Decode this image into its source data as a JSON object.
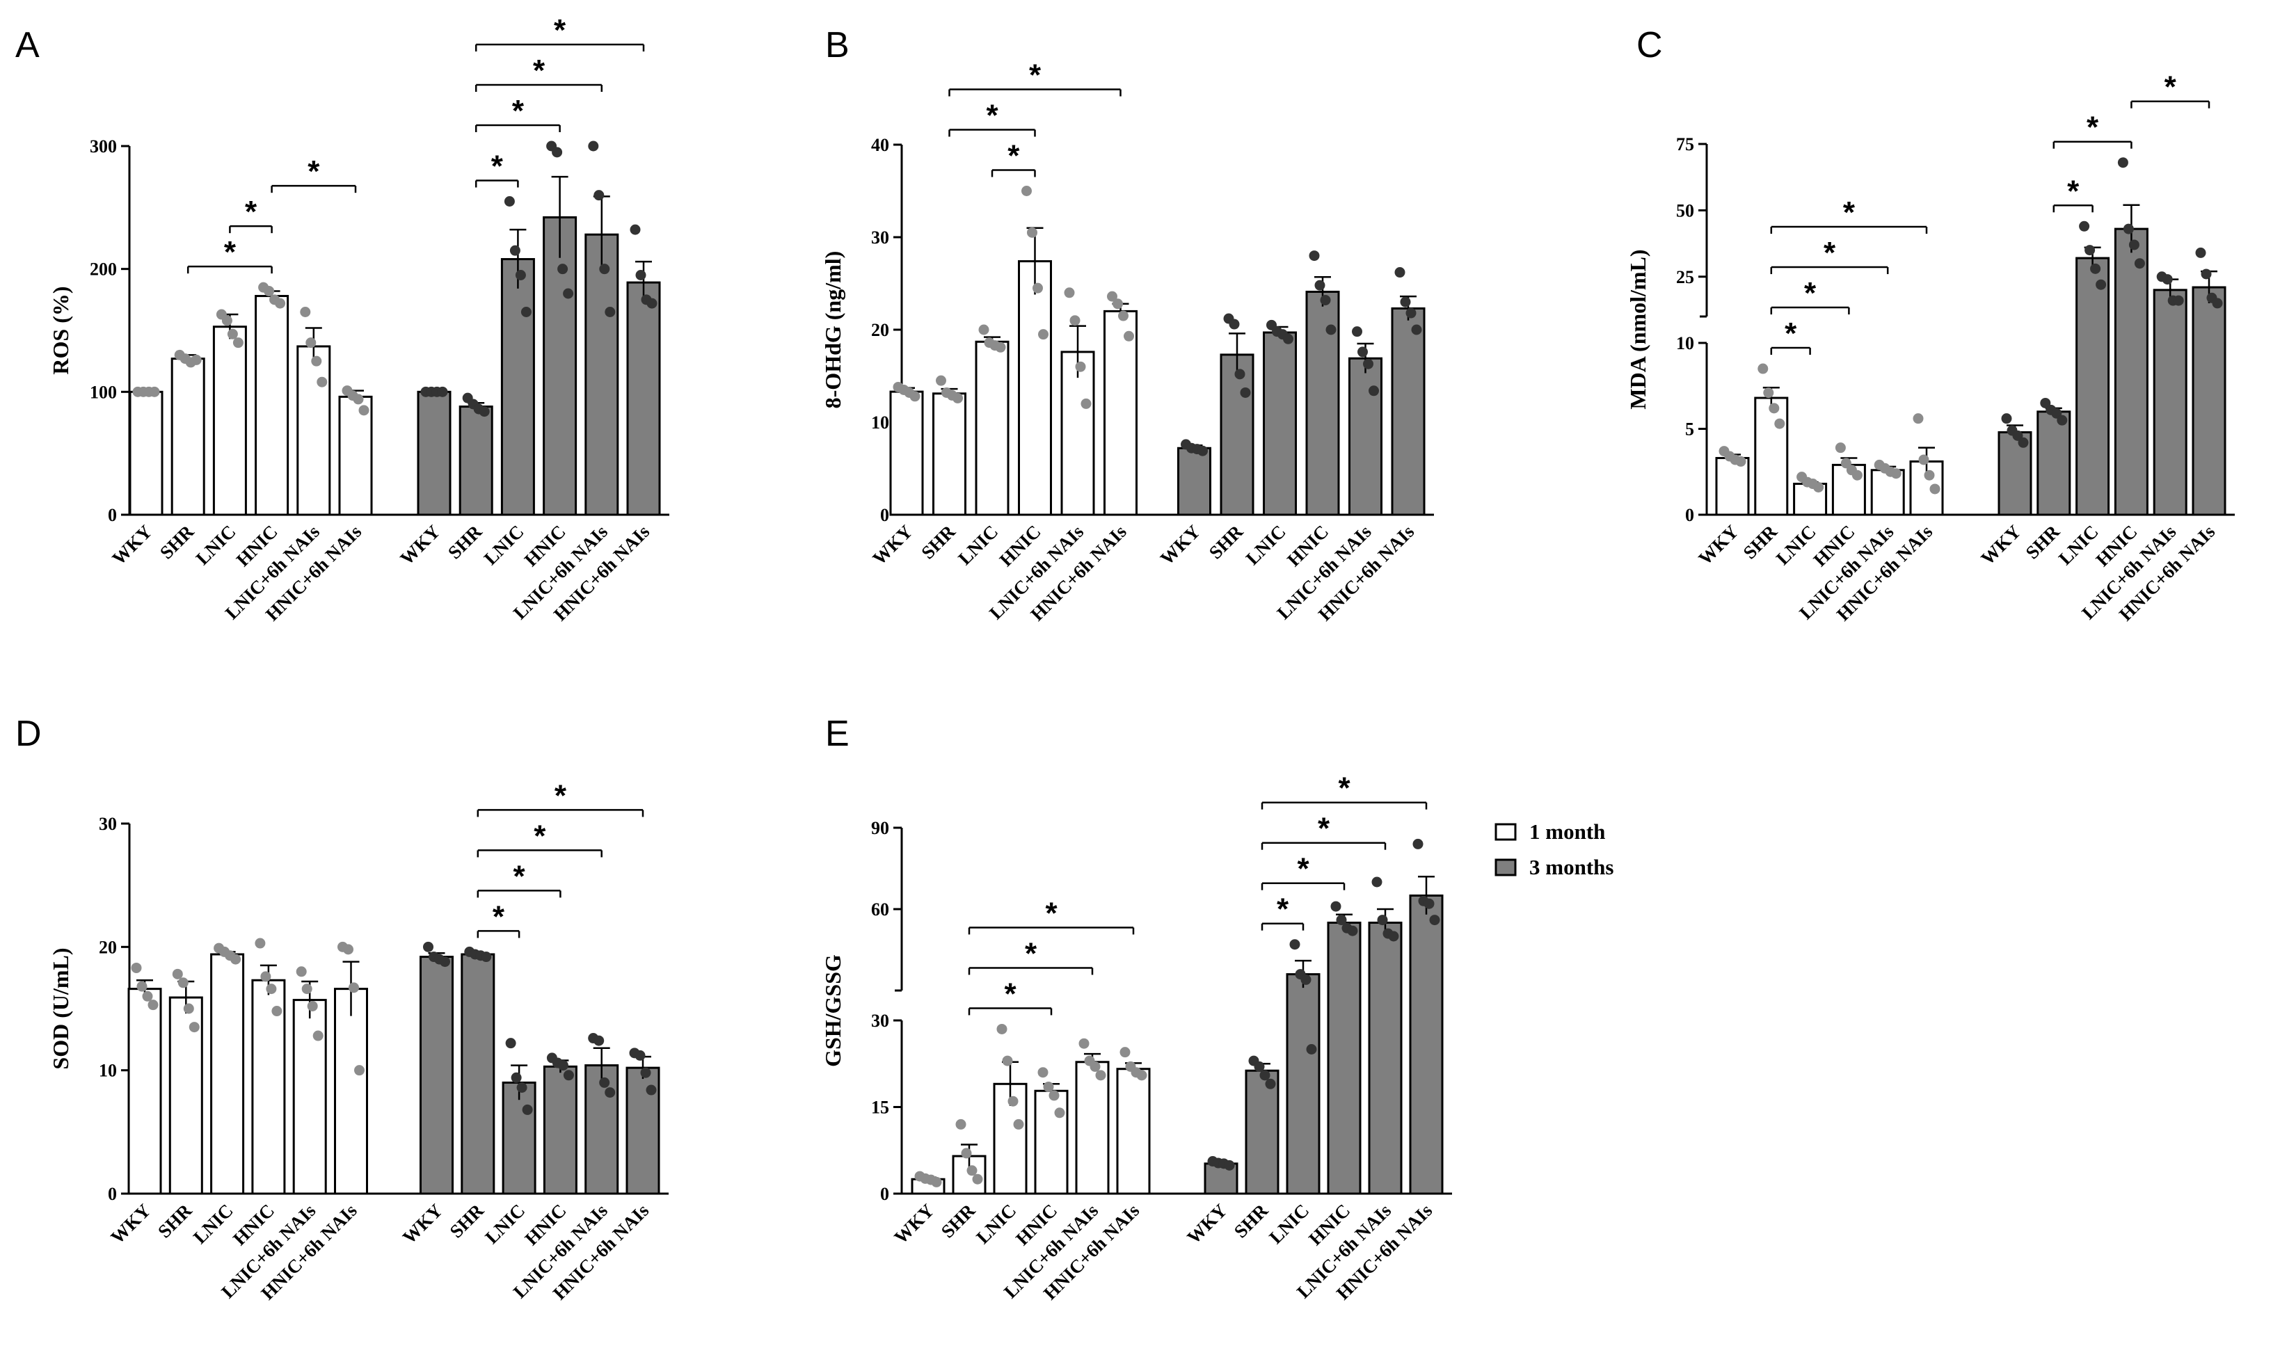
{
  "colors": {
    "month1_fill": "#ffffff",
    "month3_fill": "#7f7f7f",
    "month1_dots": "#8c8c8c",
    "month3_dots": "#333333",
    "axis": "#000000"
  },
  "legend": {
    "month1": "1 month",
    "month3": "3 months"
  },
  "chart_data": [
    {
      "panel": "A",
      "type": "bar",
      "ylabel": "ROS (%)",
      "ylim": [
        0,
        300
      ],
      "yticks": [
        0,
        100,
        200,
        300
      ],
      "categories": [
        "WKY",
        "SHR",
        "LNIC",
        "HNIC",
        "LNIC+6h NAIs",
        "HNIC+6h NAIs"
      ],
      "series": [
        {
          "name": "1 month",
          "values": [
            100,
            127,
            153,
            178,
            137,
            96
          ],
          "sem": [
            0,
            3,
            10,
            4,
            15,
            5
          ],
          "points": [
            [
              100,
              100,
              100,
              100
            ],
            [
              130,
              127,
              124,
              126
            ],
            [
              163,
              158,
              147,
              140
            ],
            [
              185,
              182,
              175,
              172
            ],
            [
              165,
              140,
              125,
              108
            ],
            [
              101,
              97,
              94,
              85
            ]
          ]
        },
        {
          "name": "3 months",
          "values": [
            100,
            88,
            208,
            242,
            228,
            189
          ],
          "sem": [
            0,
            3,
            24,
            33,
            31,
            17
          ],
          "points": [
            [
              100,
              100,
              100,
              100
            ],
            [
              95,
              90,
              86,
              84
            ],
            [
              255,
              215,
              195,
              165
            ],
            [
              300,
              295,
              200,
              180
            ],
            [
              300,
              260,
              200,
              165
            ],
            [
              232,
              195,
              175,
              172
            ]
          ]
        }
      ],
      "comparisons": [
        {
          "series": 0,
          "from": 1,
          "to": 3,
          "label": "*"
        },
        {
          "series": 0,
          "from": 2,
          "to": 3,
          "label": "*"
        },
        {
          "series": 0,
          "from": 3,
          "to": 5,
          "label": "*"
        },
        {
          "series": 1,
          "from": 1,
          "to": 2,
          "label": "*"
        },
        {
          "series": 1,
          "from": 1,
          "to": 3,
          "label": "*"
        },
        {
          "series": 1,
          "from": 1,
          "to": 4,
          "label": "*"
        },
        {
          "series": 1,
          "from": 1,
          "to": 5,
          "label": "*"
        }
      ]
    },
    {
      "panel": "B",
      "type": "bar",
      "ylabel": "8-OHdG (ng/ml)",
      "ylim": [
        0,
        40
      ],
      "yticks": [
        0,
        10,
        20,
        30,
        40
      ],
      "categories": [
        "WKY",
        "SHR",
        "LNIC",
        "HNIC",
        "LNIC+6h NAIs",
        "HNIC+6h NAIs"
      ],
      "series": [
        {
          "name": "1 month",
          "values": [
            13.3,
            13.1,
            18.7,
            27.4,
            17.6,
            22.0
          ],
          "sem": [
            0.4,
            0.5,
            0.5,
            3.6,
            2.8,
            0.8
          ],
          "points": [
            [
              13.8,
              13.5,
              13.2,
              12.8
            ],
            [
              14.5,
              13.2,
              12.9,
              12.6
            ],
            [
              20.0,
              18.6,
              18.3,
              18.1
            ],
            [
              35.0,
              30.5,
              24.5,
              19.5
            ],
            [
              24.0,
              21.0,
              16.0,
              12.0
            ],
            [
              23.6,
              22.8,
              21.5,
              19.3
            ]
          ]
        },
        {
          "name": "3 months",
          "values": [
            7.2,
            17.3,
            19.7,
            24.1,
            16.9,
            22.3
          ],
          "sem": [
            0.3,
            2.3,
            0.6,
            1.6,
            1.6,
            1.3
          ],
          "points": [
            [
              7.6,
              7.2,
              7.1,
              6.9
            ],
            [
              21.2,
              20.6,
              15.2,
              13.2
            ],
            [
              20.5,
              19.8,
              19.5,
              19.0
            ],
            [
              28.0,
              24.8,
              23.2,
              20.0
            ],
            [
              19.8,
              17.6,
              16.3,
              13.4
            ],
            [
              26.2,
              23.0,
              21.8,
              20.0
            ]
          ]
        }
      ],
      "comparisons": [
        {
          "series": 0,
          "from": 2,
          "to": 3,
          "label": "*"
        },
        {
          "series": 0,
          "from": 1,
          "to": 3,
          "label": "*"
        },
        {
          "series": 0,
          "from": 1,
          "to": 5,
          "label": "*"
        }
      ]
    },
    {
      "panel": "C",
      "type": "bar",
      "ylabel": "MDA (nmol/mL)",
      "axis_break": {
        "lower": [
          0,
          10
        ],
        "upper": [
          10,
          75
        ]
      },
      "yticks": [
        0,
        5,
        10,
        25,
        50,
        75
      ],
      "categories": [
        "WKY",
        "SHR",
        "LNIC",
        "HNIC",
        "LNIC+6h NAIs",
        "HNIC+6h NAIs"
      ],
      "series": [
        {
          "name": "1 month",
          "values": [
            3.3,
            6.8,
            1.8,
            2.9,
            2.6,
            3.1
          ],
          "sem": [
            0.2,
            0.6,
            0.1,
            0.4,
            0.2,
            0.8
          ],
          "points": [
            [
              3.7,
              3.4,
              3.2,
              3.1
            ],
            [
              8.5,
              7.1,
              6.2,
              5.3
            ],
            [
              2.2,
              1.9,
              1.8,
              1.6
            ],
            [
              3.9,
              3.0,
              2.6,
              2.3
            ],
            [
              2.9,
              2.7,
              2.5,
              2.4
            ],
            [
              5.6,
              3.2,
              2.3,
              1.5
            ]
          ]
        },
        {
          "name": "3 months",
          "values": [
            4.8,
            6.0,
            32,
            43,
            20,
            21
          ],
          "sem": [
            0.4,
            0.2,
            4,
            9,
            4,
            6
          ],
          "points": [
            [
              5.6,
              4.9,
              4.6,
              4.2
            ],
            [
              6.5,
              6.1,
              5.9,
              5.5
            ],
            [
              44,
              35,
              28,
              22
            ],
            [
              68,
              43,
              37,
              30
            ],
            [
              25,
              24,
              16,
              16
            ],
            [
              34,
              26,
              17,
              15
            ]
          ]
        }
      ],
      "comparisons": [
        {
          "series": 0,
          "from": 1,
          "to": 2,
          "label": "*"
        },
        {
          "series": 0,
          "from": 1,
          "to": 3,
          "label": "*"
        },
        {
          "series": 0,
          "from": 1,
          "to": 4,
          "label": "*"
        },
        {
          "series": 0,
          "from": 1,
          "to": 5,
          "label": "*"
        },
        {
          "series": 1,
          "from": 1,
          "to": 2,
          "label": "*"
        },
        {
          "series": 1,
          "from": 1,
          "to": 3,
          "label": "*"
        },
        {
          "series": 1,
          "from": 3,
          "to": 5,
          "label": "*"
        }
      ]
    },
    {
      "panel": "D",
      "type": "bar",
      "ylabel": "SOD (U/mL)",
      "ylim": [
        0,
        30
      ],
      "yticks": [
        0,
        10,
        20,
        30
      ],
      "categories": [
        "WKY",
        "SHR",
        "LNIC",
        "HNIC",
        "LNIC+6h NAIs",
        "HNIC+6h NAIs"
      ],
      "series": [
        {
          "name": "1 month",
          "values": [
            16.6,
            15.9,
            19.4,
            17.3,
            15.7,
            16.6
          ],
          "sem": [
            0.7,
            1.3,
            0.2,
            1.2,
            1.5,
            2.2
          ],
          "points": [
            [
              18.3,
              16.8,
              16.0,
              15.3
            ],
            [
              17.8,
              17.1,
              15.0,
              13.5
            ],
            [
              19.9,
              19.6,
              19.3,
              19.0
            ],
            [
              20.3,
              17.6,
              16.6,
              14.8
            ],
            [
              18.0,
              16.6,
              15.2,
              12.8
            ],
            [
              20.0,
              19.8,
              16.7,
              10.0
            ]
          ]
        },
        {
          "name": "3 months",
          "values": [
            19.2,
            19.4,
            9.0,
            10.3,
            10.4,
            10.2
          ],
          "sem": [
            0.3,
            0.1,
            1.4,
            0.5,
            1.4,
            0.9
          ],
          "points": [
            [
              20.0,
              19.2,
              19.0,
              18.8
            ],
            [
              19.6,
              19.4,
              19.3,
              19.2
            ],
            [
              12.2,
              9.4,
              8.6,
              6.8
            ],
            [
              11.0,
              10.6,
              10.4,
              9.6
            ],
            [
              12.6,
              12.4,
              9.0,
              8.2
            ],
            [
              11.4,
              11.2,
              9.8,
              8.4
            ]
          ]
        }
      ],
      "comparisons": [
        {
          "series": 1,
          "from": 1,
          "to": 2,
          "label": "*"
        },
        {
          "series": 1,
          "from": 1,
          "to": 3,
          "label": "*"
        },
        {
          "series": 1,
          "from": 1,
          "to": 4,
          "label": "*"
        },
        {
          "series": 1,
          "from": 1,
          "to": 5,
          "label": "*"
        }
      ]
    },
    {
      "panel": "E",
      "type": "bar",
      "ylabel": "GSH/GSSG",
      "axis_break": {
        "lower": [
          0,
          30
        ],
        "upper": [
          30,
          90
        ]
      },
      "yticks": [
        0,
        15,
        30,
        60,
        90
      ],
      "categories": [
        "WKY",
        "SHR",
        "LNIC",
        "HNIC",
        "LNIC+6h NAIs",
        "HNIC+6h NAIs"
      ],
      "series": [
        {
          "name": "1 month",
          "values": [
            2.5,
            6.5,
            19.0,
            17.8,
            22.8,
            21.6
          ],
          "sem": [
            0.3,
            2.0,
            3.8,
            1.2,
            1.4,
            1.0
          ],
          "points": [
            [
              3.0,
              2.6,
              2.4,
              2.0
            ],
            [
              12.0,
              7.0,
              4.0,
              2.5
            ],
            [
              28.5,
              23.0,
              16.0,
              12.0
            ],
            [
              21.0,
              18.5,
              17.0,
              14.0
            ],
            [
              26.0,
              23.0,
              22.0,
              20.5
            ],
            [
              24.5,
              22.0,
              21.0,
              20.5
            ]
          ]
        },
        {
          "name": "3 months",
          "values": [
            5.2,
            21.3,
            36,
            55,
            55,
            65
          ],
          "sem": [
            0.2,
            1.2,
            5,
            3,
            5,
            7
          ],
          "points": [
            [
              5.6,
              5.3,
              5.2,
              4.9
            ],
            [
              23.0,
              22.0,
              20.5,
              19.0
            ],
            [
              47,
              36,
              34,
              25
            ],
            [
              61,
              56,
              53,
              52
            ],
            [
              70,
              56,
              51,
              50
            ],
            [
              84,
              63,
              62,
              56
            ]
          ]
        }
      ],
      "comparisons": [
        {
          "series": 0,
          "from": 1,
          "to": 3,
          "label": "*"
        },
        {
          "series": 0,
          "from": 1,
          "to": 4,
          "label": "*"
        },
        {
          "series": 0,
          "from": 1,
          "to": 5,
          "label": "*"
        },
        {
          "series": 1,
          "from": 1,
          "to": 2,
          "label": "*"
        },
        {
          "series": 1,
          "from": 1,
          "to": 3,
          "label": "*"
        },
        {
          "series": 1,
          "from": 1,
          "to": 4,
          "label": "*"
        },
        {
          "series": 1,
          "from": 1,
          "to": 5,
          "label": "*"
        }
      ]
    }
  ]
}
